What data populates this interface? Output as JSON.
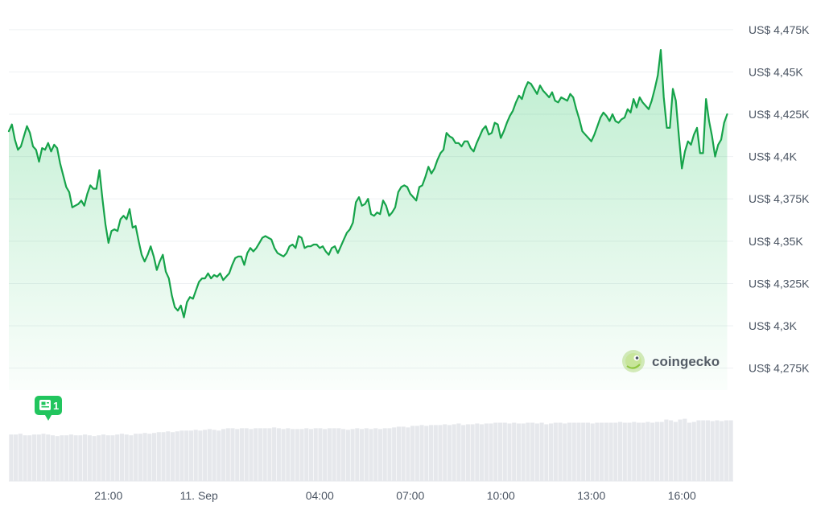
{
  "chart_data": {
    "type": "area",
    "title": "",
    "xlabel": "",
    "ylabel": "",
    "ylim": [
      4262,
      4483
    ],
    "currency_prefix": "US$",
    "y_ticks": [
      {
        "value": 4475,
        "label": "US$ 4,475K"
      },
      {
        "value": 4450,
        "label": "US$ 4,45K"
      },
      {
        "value": 4425,
        "label": "US$ 4,425K"
      },
      {
        "value": 4400,
        "label": "US$ 4,4K"
      },
      {
        "value": 4375,
        "label": "US$ 4,375K"
      },
      {
        "value": 4350,
        "label": "US$ 4,35K"
      },
      {
        "value": 4325,
        "label": "US$ 4,325K"
      },
      {
        "value": 4300,
        "label": "US$ 4,3K"
      },
      {
        "value": 4275,
        "label": "US$ 4,275K"
      }
    ],
    "x_range_hours": [
      17.7,
      41.7
    ],
    "x_ticks": [
      {
        "t": 21,
        "label": "21:00"
      },
      {
        "t": 24,
        "label": "11. Sep"
      },
      {
        "t": 28,
        "label": "04:00"
      },
      {
        "t": 31,
        "label": "07:00"
      },
      {
        "t": 34,
        "label": "10:00"
      },
      {
        "t": 37,
        "label": "13:00"
      },
      {
        "t": 40,
        "label": "16:00"
      }
    ],
    "grid": true,
    "series": [
      {
        "color": "#16a34a",
        "points": [
          [
            17.7,
            4415
          ],
          [
            17.8,
            4419
          ],
          [
            17.9,
            4410
          ],
          [
            18.0,
            4404
          ],
          [
            18.1,
            4406
          ],
          [
            18.2,
            4412
          ],
          [
            18.3,
            4418
          ],
          [
            18.4,
            4414
          ],
          [
            18.5,
            4406
          ],
          [
            18.6,
            4404
          ],
          [
            18.7,
            4397
          ],
          [
            18.8,
            4405
          ],
          [
            18.9,
            4404
          ],
          [
            19.0,
            4408
          ],
          [
            19.1,
            4403
          ],
          [
            19.2,
            4407
          ],
          [
            19.3,
            4405
          ],
          [
            19.4,
            4396
          ],
          [
            19.5,
            4389
          ],
          [
            19.6,
            4382
          ],
          [
            19.7,
            4379
          ],
          [
            19.8,
            4370
          ],
          [
            19.9,
            4371
          ],
          [
            20.0,
            4372
          ],
          [
            20.1,
            4374
          ],
          [
            20.2,
            4371
          ],
          [
            20.3,
            4378
          ],
          [
            20.4,
            4383
          ],
          [
            20.5,
            4381
          ],
          [
            20.6,
            4381
          ],
          [
            20.7,
            4392
          ],
          [
            20.8,
            4375
          ],
          [
            20.9,
            4360
          ],
          [
            21.0,
            4349
          ],
          [
            21.1,
            4356
          ],
          [
            21.2,
            4357
          ],
          [
            21.3,
            4356
          ],
          [
            21.4,
            4363
          ],
          [
            21.5,
            4365
          ],
          [
            21.6,
            4363
          ],
          [
            21.7,
            4369
          ],
          [
            21.8,
            4358
          ],
          [
            21.9,
            4359
          ],
          [
            22.0,
            4350
          ],
          [
            22.1,
            4342
          ],
          [
            22.2,
            4338
          ],
          [
            22.3,
            4342
          ],
          [
            22.4,
            4347
          ],
          [
            22.5,
            4341
          ],
          [
            22.6,
            4333
          ],
          [
            22.7,
            4338
          ],
          [
            22.8,
            4342
          ],
          [
            22.9,
            4332
          ],
          [
            23.0,
            4328
          ],
          [
            23.1,
            4318
          ],
          [
            23.2,
            4311
          ],
          [
            23.3,
            4309
          ],
          [
            23.4,
            4312
          ],
          [
            23.5,
            4305
          ],
          [
            23.6,
            4314
          ],
          [
            23.7,
            4317
          ],
          [
            23.8,
            4316
          ],
          [
            23.9,
            4321
          ],
          [
            24.0,
            4326
          ],
          [
            24.1,
            4328
          ],
          [
            24.2,
            4328
          ],
          [
            24.3,
            4331
          ],
          [
            24.4,
            4328
          ],
          [
            24.5,
            4330
          ],
          [
            24.6,
            4329
          ],
          [
            24.7,
            4331
          ],
          [
            24.8,
            4327
          ],
          [
            24.9,
            4329
          ],
          [
            25.0,
            4331
          ],
          [
            25.1,
            4336
          ],
          [
            25.2,
            4340
          ],
          [
            25.3,
            4341
          ],
          [
            25.4,
            4341
          ],
          [
            25.5,
            4336
          ],
          [
            25.6,
            4343
          ],
          [
            25.7,
            4346
          ],
          [
            25.8,
            4344
          ],
          [
            25.9,
            4346
          ],
          [
            26.0,
            4349
          ],
          [
            26.1,
            4352
          ],
          [
            26.2,
            4353
          ],
          [
            26.3,
            4352
          ],
          [
            26.4,
            4351
          ],
          [
            26.5,
            4346
          ],
          [
            26.6,
            4343
          ],
          [
            26.7,
            4342
          ],
          [
            26.8,
            4341
          ],
          [
            26.9,
            4343
          ],
          [
            27.0,
            4347
          ],
          [
            27.1,
            4348
          ],
          [
            27.2,
            4346
          ],
          [
            27.3,
            4353
          ],
          [
            27.4,
            4352
          ],
          [
            27.5,
            4346
          ],
          [
            27.6,
            4347
          ],
          [
            27.7,
            4347
          ],
          [
            27.8,
            4348
          ],
          [
            27.9,
            4348
          ],
          [
            28.0,
            4346
          ],
          [
            28.1,
            4347
          ],
          [
            28.2,
            4344
          ],
          [
            28.3,
            4342
          ],
          [
            28.4,
            4346
          ],
          [
            28.5,
            4347
          ],
          [
            28.6,
            4343
          ],
          [
            28.7,
            4347
          ],
          [
            28.8,
            4351
          ],
          [
            28.9,
            4355
          ],
          [
            29.0,
            4357
          ],
          [
            29.1,
            4361
          ],
          [
            29.2,
            4373
          ],
          [
            29.3,
            4376
          ],
          [
            29.4,
            4371
          ],
          [
            29.5,
            4372
          ],
          [
            29.6,
            4375
          ],
          [
            29.7,
            4366
          ],
          [
            29.8,
            4365
          ],
          [
            29.9,
            4367
          ],
          [
            30.0,
            4366
          ],
          [
            30.1,
            4374
          ],
          [
            30.2,
            4371
          ],
          [
            30.3,
            4365
          ],
          [
            30.4,
            4367
          ],
          [
            30.5,
            4370
          ],
          [
            30.6,
            4379
          ],
          [
            30.7,
            4382
          ],
          [
            30.8,
            4383
          ],
          [
            30.9,
            4382
          ],
          [
            31.0,
            4378
          ],
          [
            31.1,
            4376
          ],
          [
            31.2,
            4374
          ],
          [
            31.3,
            4382
          ],
          [
            31.4,
            4383
          ],
          [
            31.5,
            4388
          ],
          [
            31.6,
            4394
          ],
          [
            31.7,
            4390
          ],
          [
            31.8,
            4393
          ],
          [
            31.9,
            4398
          ],
          [
            32.0,
            4402
          ],
          [
            32.1,
            4404
          ],
          [
            32.2,
            4414
          ],
          [
            32.3,
            4412
          ],
          [
            32.4,
            4411
          ],
          [
            32.5,
            4408
          ],
          [
            32.6,
            4408
          ],
          [
            32.7,
            4406
          ],
          [
            32.8,
            4409
          ],
          [
            32.9,
            4409
          ],
          [
            33.0,
            4405
          ],
          [
            33.1,
            4403
          ],
          [
            33.2,
            4408
          ],
          [
            33.3,
            4412
          ],
          [
            33.4,
            4416
          ],
          [
            33.5,
            4418
          ],
          [
            33.6,
            4413
          ],
          [
            33.7,
            4414
          ],
          [
            33.8,
            4420
          ],
          [
            33.9,
            4419
          ],
          [
            34.0,
            4411
          ],
          [
            34.1,
            4415
          ],
          [
            34.2,
            4420
          ],
          [
            34.3,
            4424
          ],
          [
            34.4,
            4427
          ],
          [
            34.5,
            4432
          ],
          [
            34.6,
            4436
          ],
          [
            34.7,
            4434
          ],
          [
            34.8,
            4440
          ],
          [
            34.9,
            4444
          ],
          [
            35.0,
            4443
          ],
          [
            35.1,
            4440
          ],
          [
            35.2,
            4437
          ],
          [
            35.3,
            4442
          ],
          [
            35.4,
            4439
          ],
          [
            35.5,
            4437
          ],
          [
            35.6,
            4435
          ],
          [
            35.7,
            4438
          ],
          [
            35.8,
            4433
          ],
          [
            35.9,
            4432
          ],
          [
            36.0,
            4435
          ],
          [
            36.1,
            4434
          ],
          [
            36.2,
            4433
          ],
          [
            36.3,
            4437
          ],
          [
            36.4,
            4435
          ],
          [
            36.5,
            4428
          ],
          [
            36.6,
            4422
          ],
          [
            36.7,
            4415
          ],
          [
            36.8,
            4413
          ],
          [
            36.9,
            4411
          ],
          [
            37.0,
            4409
          ],
          [
            37.1,
            4413
          ],
          [
            37.2,
            4418
          ],
          [
            37.3,
            4423
          ],
          [
            37.4,
            4426
          ],
          [
            37.5,
            4424
          ],
          [
            37.6,
            4421
          ],
          [
            37.7,
            4425
          ],
          [
            37.8,
            4421
          ],
          [
            37.9,
            4420
          ],
          [
            38.0,
            4422
          ],
          [
            38.1,
            4423
          ],
          [
            38.2,
            4428
          ],
          [
            38.3,
            4426
          ],
          [
            38.4,
            4434
          ],
          [
            38.5,
            4429
          ],
          [
            38.6,
            4435
          ],
          [
            38.7,
            4432
          ],
          [
            38.8,
            4430
          ],
          [
            38.9,
            4428
          ],
          [
            39.0,
            4433
          ],
          [
            39.1,
            4440
          ],
          [
            39.2,
            4448
          ],
          [
            39.3,
            4463
          ],
          [
            39.4,
            4435
          ],
          [
            39.5,
            4417
          ],
          [
            39.6,
            4417
          ],
          [
            39.7,
            4440
          ],
          [
            39.8,
            4433
          ],
          [
            39.9,
            4412
          ],
          [
            40.0,
            4393
          ],
          [
            40.1,
            4403
          ],
          [
            40.2,
            4409
          ],
          [
            40.3,
            4407
          ],
          [
            40.4,
            4413
          ],
          [
            40.5,
            4417
          ],
          [
            40.6,
            4402
          ],
          [
            40.7,
            4402
          ],
          [
            40.8,
            4434
          ],
          [
            40.9,
            4421
          ],
          [
            41.0,
            4412
          ],
          [
            41.1,
            4400
          ],
          [
            41.2,
            4407
          ],
          [
            41.3,
            4410
          ],
          [
            41.4,
            4420
          ],
          [
            41.5,
            4425
          ]
        ]
      }
    ],
    "volume": {
      "relative": [
        0.59,
        0.59,
        0.6,
        0.58,
        0.58,
        0.59,
        0.59,
        0.6,
        0.59,
        0.58,
        0.57,
        0.58,
        0.58,
        0.59,
        0.58,
        0.58,
        0.59,
        0.58,
        0.57,
        0.58,
        0.59,
        0.58,
        0.58,
        0.59,
        0.6,
        0.59,
        0.58,
        0.6,
        0.6,
        0.61,
        0.6,
        0.61,
        0.62,
        0.62,
        0.63,
        0.62,
        0.63,
        0.64,
        0.64,
        0.64,
        0.65,
        0.64,
        0.65,
        0.66,
        0.65,
        0.64,
        0.66,
        0.67,
        0.67,
        0.66,
        0.67,
        0.67,
        0.66,
        0.67,
        0.67,
        0.67,
        0.67,
        0.68,
        0.67,
        0.66,
        0.67,
        0.66,
        0.66,
        0.66,
        0.67,
        0.66,
        0.67,
        0.67,
        0.66,
        0.67,
        0.67,
        0.67,
        0.66,
        0.65,
        0.66,
        0.67,
        0.66,
        0.67,
        0.66,
        0.67,
        0.66,
        0.67,
        0.67,
        0.68,
        0.69,
        0.69,
        0.68,
        0.7,
        0.7,
        0.71,
        0.7,
        0.71,
        0.71,
        0.71,
        0.72,
        0.71,
        0.72,
        0.73,
        0.71,
        0.72,
        0.72,
        0.73,
        0.72,
        0.73,
        0.73,
        0.74,
        0.74,
        0.74,
        0.73,
        0.74,
        0.73,
        0.73,
        0.74,
        0.74,
        0.73,
        0.74,
        0.72,
        0.73,
        0.74,
        0.74,
        0.73,
        0.74,
        0.74,
        0.74,
        0.74,
        0.74,
        0.73,
        0.74,
        0.74,
        0.74,
        0.74,
        0.74,
        0.75,
        0.74,
        0.74,
        0.75,
        0.74,
        0.74,
        0.75,
        0.74,
        0.75,
        0.75,
        0.78,
        0.77,
        0.75,
        0.78,
        0.79,
        0.74,
        0.75,
        0.77,
        0.77,
        0.77,
        0.76,
        0.77,
        0.76,
        0.77,
        0.77
      ]
    }
  },
  "events": {
    "news_badge": {
      "count": "1",
      "color": "#22c55e"
    }
  },
  "watermark": {
    "text": "coingecko"
  }
}
